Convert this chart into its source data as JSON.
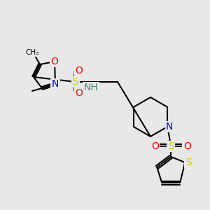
{
  "bg_color": "#e8e8e8",
  "bond_color": "#000000",
  "bond_width": 1.5,
  "atom_colors": {
    "O": "#ff0000",
    "N": "#0000ff",
    "S": "#cccc00",
    "C": "#000000",
    "H": "#808080"
  }
}
